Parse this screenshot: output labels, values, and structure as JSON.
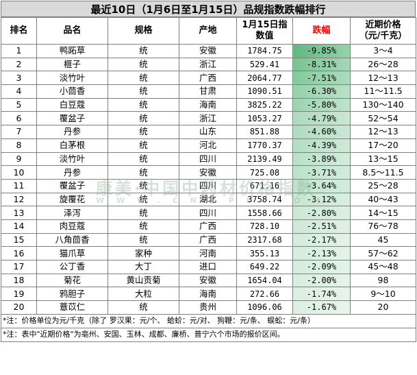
{
  "title": "最近10日（1月6日至1月15日）品规指数跌幅排行",
  "headers": {
    "rank": "排名",
    "name": "品名",
    "spec": "规格",
    "origin": "产地",
    "index_l1": "1月15日指",
    "index_l2": "数值",
    "drop": "跌幅",
    "price_l1": "近期价格",
    "price_l2": "（元/千克）"
  },
  "colors": {
    "drop_header": "#ff0000",
    "bar_dark": "#5fb97f",
    "bar_light": "#ffffff"
  },
  "rows": [
    {
      "rank": "1",
      "name": "鸭跖草",
      "spec": "统",
      "origin": "安徽",
      "index": "1784.75",
      "drop": "-9.85%",
      "price": "3～4",
      "drop_value": 9.85
    },
    {
      "rank": "2",
      "name": "榧子",
      "spec": "统",
      "origin": "浙江",
      "index": "529.41",
      "drop": "-8.31%",
      "price": "26～28",
      "drop_value": 8.31
    },
    {
      "rank": "3",
      "name": "淡竹叶",
      "spec": "统",
      "origin": "广西",
      "index": "2064.77",
      "drop": "-7.51%",
      "price": "12～13",
      "drop_value": 7.51
    },
    {
      "rank": "4",
      "name": "小茴香",
      "spec": "统",
      "origin": "甘肃",
      "index": "1090.51",
      "drop": "-6.30%",
      "price": "11～11.5",
      "drop_value": 6.3
    },
    {
      "rank": "5",
      "name": "白豆蔻",
      "spec": "统",
      "origin": "海南",
      "index": "3825.22",
      "drop": "-5.80%",
      "price": "130～140",
      "drop_value": 5.8
    },
    {
      "rank": "6",
      "name": "覆盆子",
      "spec": "统",
      "origin": "浙江",
      "index": "1053.27",
      "drop": "-4.79%",
      "price": "52～54",
      "drop_value": 4.79
    },
    {
      "rank": "7",
      "name": "丹参",
      "spec": "统",
      "origin": "山东",
      "index": "851.88",
      "drop": "-4.60%",
      "price": "12～13",
      "drop_value": 4.6
    },
    {
      "rank": "8",
      "name": "白茅根",
      "spec": "统",
      "origin": "河北",
      "index": "1770.37",
      "drop": "-4.39%",
      "price": "17～20",
      "drop_value": 4.39
    },
    {
      "rank": "9",
      "name": "淡竹叶",
      "spec": "统",
      "origin": "四川",
      "index": "2139.49",
      "drop": "-3.89%",
      "price": "13～15",
      "drop_value": 3.89
    },
    {
      "rank": "10",
      "name": "丹参",
      "spec": "统",
      "origin": "安徽",
      "index": "725.08",
      "drop": "-3.71%",
      "price": "8.5～11.5",
      "drop_value": 3.71
    },
    {
      "rank": "11",
      "name": "覆盆子",
      "spec": "统",
      "origin": "四川",
      "index": "671.16",
      "drop": "-3.64%",
      "price": "25～28",
      "drop_value": 3.64
    },
    {
      "rank": "12",
      "name": "旋覆花",
      "spec": "统",
      "origin": "湖北",
      "index": "3758.74",
      "drop": "-3.12%",
      "price": "40～43",
      "drop_value": 3.12
    },
    {
      "rank": "13",
      "name": "泽泻",
      "spec": "统",
      "origin": "四川",
      "index": "1558.66",
      "drop": "-2.80%",
      "price": "14～15",
      "drop_value": 2.8
    },
    {
      "rank": "14",
      "name": "肉豆蔻",
      "spec": "统",
      "origin": "广西",
      "index": "728.10",
      "drop": "-2.51%",
      "price": "76～78",
      "drop_value": 2.51
    },
    {
      "rank": "15",
      "name": "八角茴香",
      "spec": "统",
      "origin": "广西",
      "index": "2317.68",
      "drop": "-2.17%",
      "price": "45",
      "drop_value": 2.17
    },
    {
      "rank": "16",
      "name": "猫爪草",
      "spec": "家种",
      "origin": "河南",
      "index": "355.13",
      "drop": "-2.13%",
      "price": "57～62",
      "drop_value": 2.13
    },
    {
      "rank": "17",
      "name": "公丁香",
      "spec": "大丁",
      "origin": "进口",
      "index": "649.22",
      "drop": "-2.09%",
      "price": "45～48",
      "drop_value": 2.09
    },
    {
      "rank": "18",
      "name": "菊花",
      "spec": "黄山贡菊",
      "origin": "安徽",
      "index": "1654.04",
      "drop": "-2.00%",
      "price": "98",
      "drop_value": 2.0
    },
    {
      "rank": "19",
      "name": "鸦胆子",
      "spec": "大粒",
      "origin": "海南",
      "index": "272.66",
      "drop": "-1.74%",
      "price": "9～10",
      "drop_value": 1.74
    },
    {
      "rank": "20",
      "name": "薏苡仁",
      "spec": "统",
      "origin": "贵州",
      "index": "1096.06",
      "drop": "-1.67%",
      "price": "20",
      "drop_value": 1.67
    }
  ],
  "notes": [
    "*注：价格单位为元/千克（除了  罗汉果：元/个、  蛤蚧：元/对、  狗鞭：元/条、  蜈蚣：元/条）",
    "*注：表中\"近期价格\"为亳州、安国、玉林、成都、廉桥、普宁六个市场的报价区间。"
  ],
  "watermark": {
    "main": "康美·中国中药材价格指数",
    "sub": "W W W . C N M P I . C O M"
  }
}
